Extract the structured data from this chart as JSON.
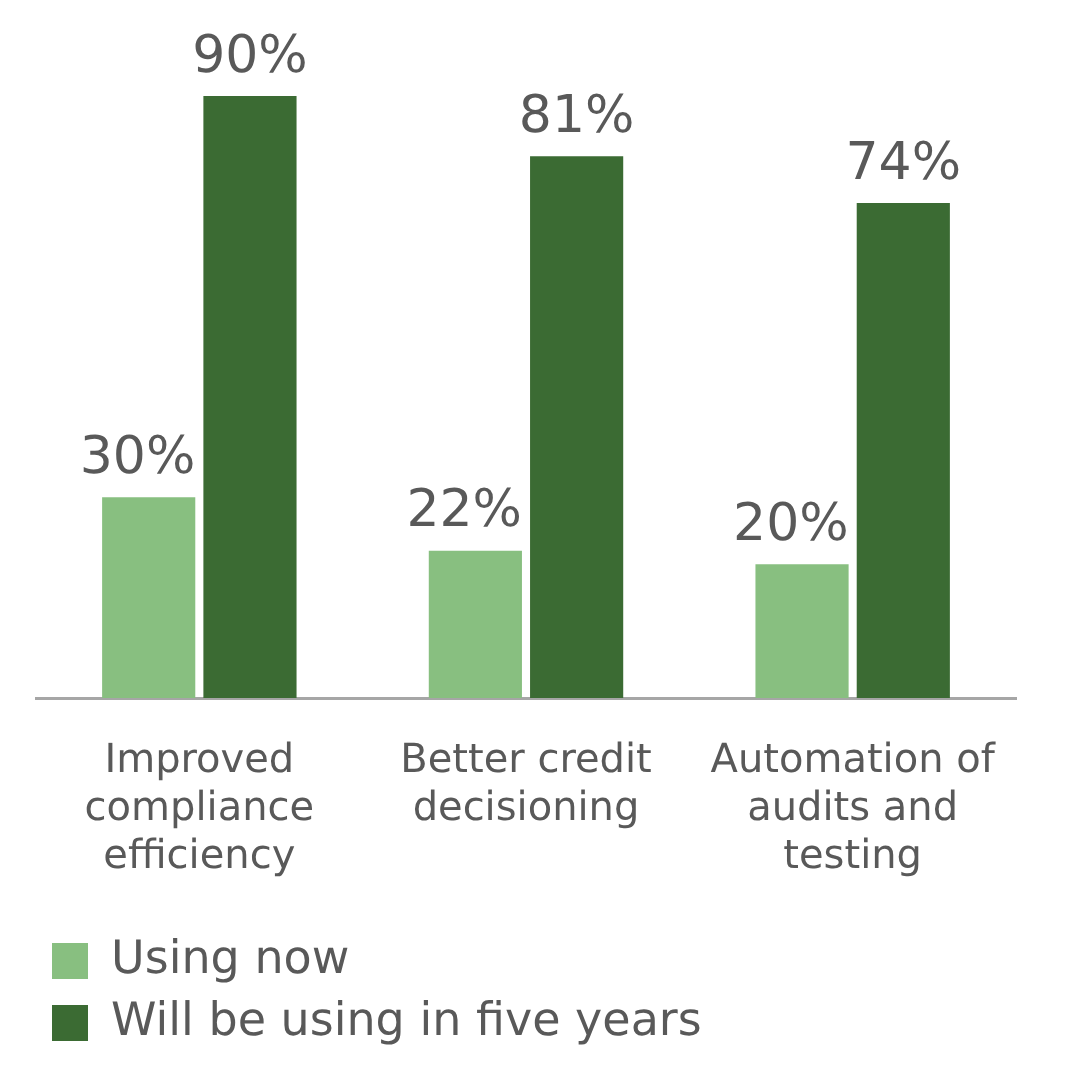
{
  "chart_data": {
    "type": "bar",
    "categories": [
      "Improved compliance efficiency",
      "Better credit decisioning",
      "Automation of audits and testing"
    ],
    "series": [
      {
        "name": "Using now",
        "color": "#88bf80",
        "values": [
          30,
          22,
          20
        ],
        "value_labels": [
          "30%",
          "22%",
          "20%"
        ]
      },
      {
        "name": "Will be using in five years",
        "color": "#3b6b33",
        "values": [
          90,
          81,
          74
        ],
        "value_labels": [
          "90%",
          "81%",
          "74%"
        ]
      }
    ],
    "legend": "bottom",
    "grid": false
  }
}
